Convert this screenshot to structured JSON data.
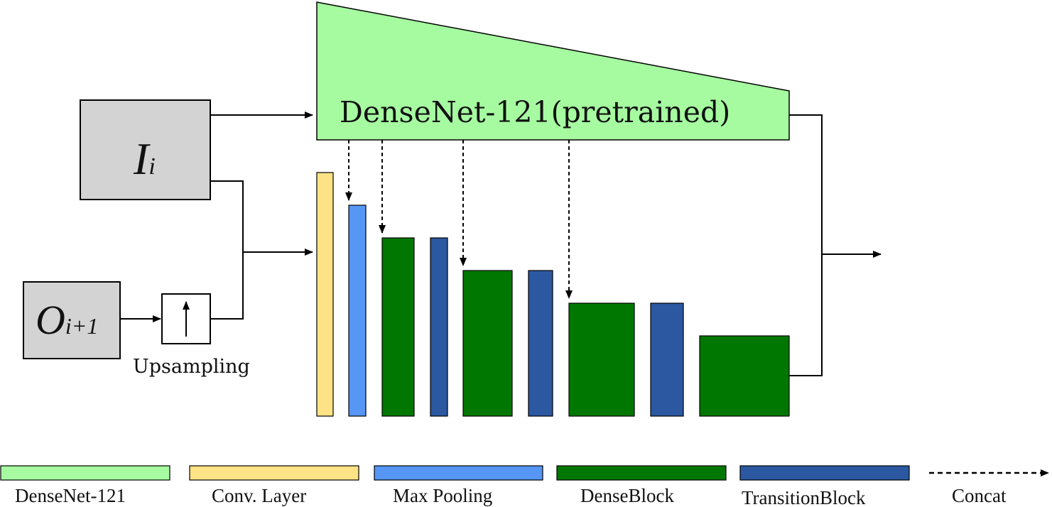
{
  "diagram": {
    "main_block_label": "DenseNet-121(pretrained)",
    "input_i": {
      "symbol": "I",
      "subscript": "i"
    },
    "input_o": {
      "symbol": "O",
      "subscript": "i+1"
    },
    "upsampling_label": "Upsampling"
  },
  "legend": {
    "items": [
      {
        "label": "DenseNet-121",
        "color": "#A6FBA0"
      },
      {
        "label": "Conv. Layer",
        "color": "#FDE386"
      },
      {
        "label": "Max Pooling",
        "color": "#5696F5"
      },
      {
        "label": "DenseBlock",
        "color": "#007700"
      },
      {
        "label": "TransitionBlock",
        "color": "#2B58A1"
      }
    ],
    "concat_label": "Concat"
  },
  "colors": {
    "densenet": "#A6FBA0",
    "conv": "#FDE386",
    "maxpool": "#5696F5",
    "denseblock": "#007700",
    "transition": "#2B58A1",
    "input_box": "#D3D3D3"
  }
}
